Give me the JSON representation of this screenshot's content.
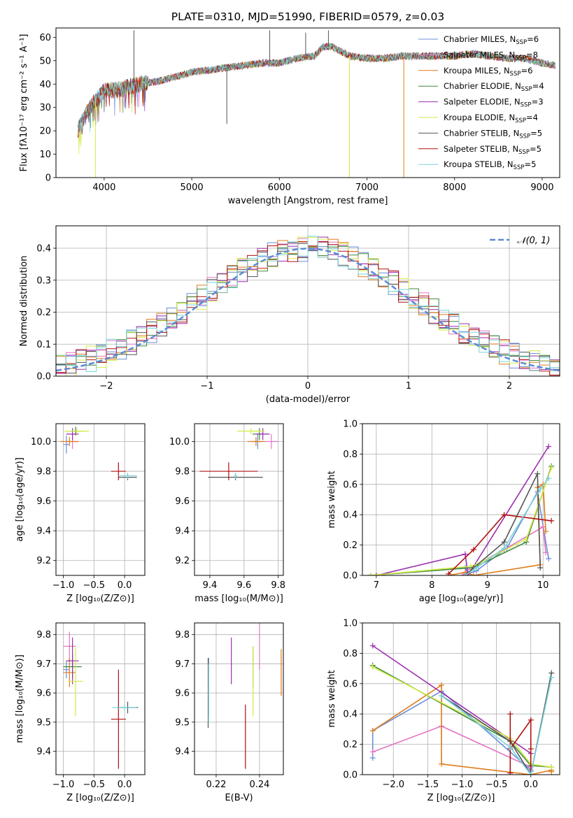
{
  "figure_title": "PLATE=0310, MJD=51990, FIBERID=0579, z=0.03",
  "colors": {
    "Chabrier MILES": "#6a8fd8",
    "Salpeter MILES": "#e377c2",
    "Kroupa MILES": "#e07b1a",
    "Chabrier ELODIE": "#3f8a3f",
    "Salpeter ELODIE": "#9a2fae",
    "Kroupa ELODIE": "#d4ea45",
    "Chabrier STELIB": "#555555",
    "Salpeter STELIB": "#b01010",
    "Kroupa STELIB": "#7ad3da"
  },
  "chart_data": [
    {
      "id": "spectrum",
      "type": "line",
      "title": "PLATE=0310, MJD=51990, FIBERID=0579, z=0.03",
      "xlabel": "wavelength [Angstrom, rest frame]",
      "ylabel": "Flux [fλ10⁻¹⁷ erg cm⁻² s⁻¹ A⁻¹]",
      "xlim": [
        3450,
        9200
      ],
      "ylim": [
        0,
        64
      ],
      "xticks": [
        4000,
        5000,
        6000,
        7000,
        8000,
        9000
      ],
      "yticks": [
        0,
        10,
        20,
        30,
        40,
        50,
        60
      ],
      "legend_position": "top-right",
      "legend": [
        {
          "name": "Chabrier MILES",
          "nssp": "6"
        },
        {
          "name": "Salpeter MILES",
          "nssp": "8"
        },
        {
          "name": "Kroupa MILES",
          "nssp": "6"
        },
        {
          "name": "Chabrier ELODIE",
          "nssp": "4"
        },
        {
          "name": "Salpeter ELODIE",
          "nssp": "3"
        },
        {
          "name": "Kroupa ELODIE",
          "nssp": "4"
        },
        {
          "name": "Chabrier STELIB",
          "nssp": "5"
        },
        {
          "name": "Salpeter STELIB",
          "nssp": "5"
        },
        {
          "name": "Kroupa STELIB",
          "nssp": "5"
        }
      ],
      "continuum": {
        "x": [
          3700,
          3800,
          3900,
          4000,
          4200,
          4400,
          4600,
          4800,
          5000,
          5200,
          5400,
          5600,
          5800,
          6000,
          6200,
          6400,
          6500,
          6600,
          6800,
          7000,
          7200,
          7400,
          7600,
          7800,
          8000,
          8200,
          8400,
          8600,
          8800,
          9000,
          9150
        ],
        "y": [
          20,
          28,
          33,
          37,
          38,
          40,
          41,
          43,
          45,
          46,
          47,
          48,
          49,
          49,
          51,
          52,
          56,
          56,
          52,
          51,
          51,
          52,
          52,
          52,
          52,
          53,
          52,
          51,
          51,
          49,
          48
        ]
      },
      "noise_amplitude": 1.6,
      "spikes": [
        {
          "x": 3900,
          "y": 0,
          "series": "Kroupa ELODIE"
        },
        {
          "x": 4340,
          "y": 63,
          "series": "Chabrier STELIB"
        },
        {
          "x": 5400,
          "y": 23,
          "series": "Chabrier STELIB"
        },
        {
          "x": 5890,
          "y": 63,
          "series": "Chabrier STELIB"
        },
        {
          "x": 6300,
          "y": 62,
          "series": "Chabrier STELIB"
        },
        {
          "x": 6560,
          "y": 63,
          "series": "Chabrier STELIB"
        },
        {
          "x": 6800,
          "y": 0,
          "series": "Kroupa ELODIE"
        },
        {
          "x": 7420,
          "y": 0,
          "series": "Kroupa MILES"
        }
      ]
    },
    {
      "id": "residuals",
      "type": "area",
      "xlabel": "(data-model)/error",
      "ylabel": "Normed distribution",
      "xlim": [
        -2.5,
        2.5
      ],
      "ylim": [
        0,
        0.47
      ],
      "xticks": [
        -2,
        -1,
        0,
        1,
        2
      ],
      "yticks": [
        0.0,
        0.1,
        0.2,
        0.3,
        0.4
      ],
      "bin_width": 0.1,
      "reference": {
        "name": "𝒩(0, 1)",
        "mean": 0,
        "sigma": 1
      },
      "legend_position": "top-right"
    },
    {
      "id": "age_vs_Z",
      "type": "scatter",
      "xlabel": "Z [log₁₀(Z/Z⊙)]",
      "ylabel": "age  [log₁₀(age/yr)]",
      "xlim": [
        -1.12,
        0.33
      ],
      "ylim": [
        9.1,
        10.12
      ],
      "xticks": [
        -1.0,
        -0.5,
        0.0
      ],
      "yticks": [
        9.2,
        9.4,
        9.6,
        9.8,
        10.0
      ],
      "points": [
        {
          "series": "Chabrier MILES",
          "x": -0.95,
          "y": 9.98,
          "xerr": 0.05,
          "yerr": 0.06
        },
        {
          "series": "Salpeter MILES",
          "x": -0.85,
          "y": 10.0,
          "xerr": 0.1,
          "yerr": 0.05
        },
        {
          "series": "Kroupa MILES",
          "x": -0.9,
          "y": 10.0,
          "xerr": 0.15,
          "yerr": 0.03
        },
        {
          "series": "Chabrier ELODIE",
          "x": -0.8,
          "y": 10.07,
          "xerr": 0.1,
          "yerr": 0.03
        },
        {
          "series": "Salpeter ELODIE",
          "x": -0.85,
          "y": 10.05,
          "xerr": 0.1,
          "yerr": 0.04
        },
        {
          "series": "Kroupa ELODIE",
          "x": -0.78,
          "y": 10.07,
          "xerr": 0.2,
          "yerr": 0.02
        },
        {
          "series": "Chabrier STELIB",
          "x": 0.05,
          "y": 9.76,
          "xerr": 0.15,
          "yerr": 0.02
        },
        {
          "series": "Salpeter STELIB",
          "x": -0.1,
          "y": 9.8,
          "xerr": 0.12,
          "yerr": 0.06
        },
        {
          "series": "Kroupa STELIB",
          "x": 0.05,
          "y": 9.77,
          "xerr": 0.15,
          "yerr": 0.02
        }
      ]
    },
    {
      "id": "age_vs_mass",
      "type": "scatter",
      "xlabel": "mass [log₁₀(M/M⊙)]",
      "ylabel": "",
      "xlim": [
        9.31,
        9.83
      ],
      "ylim": [
        9.1,
        10.12
      ],
      "xticks": [
        9.4,
        9.6,
        9.8
      ],
      "yticks": [
        9.2,
        9.4,
        9.6,
        9.8,
        10.0
      ],
      "points": [
        {
          "series": "Chabrier MILES",
          "x": 9.68,
          "y": 10.0,
          "xerr": 0.03,
          "yerr": 0.05
        },
        {
          "series": "Salpeter MILES",
          "x": 9.76,
          "y": 10.0,
          "xerr": 0.04,
          "yerr": 0.05
        },
        {
          "series": "Kroupa MILES",
          "x": 9.67,
          "y": 10.0,
          "xerr": 0.05,
          "yerr": 0.03
        },
        {
          "series": "Chabrier ELODIE",
          "x": 9.69,
          "y": 10.05,
          "xerr": 0.04,
          "yerr": 0.04
        },
        {
          "series": "Salpeter ELODIE",
          "x": 9.71,
          "y": 10.05,
          "xerr": 0.04,
          "yerr": 0.04
        },
        {
          "series": "Kroupa ELODIE",
          "x": 9.64,
          "y": 10.07,
          "xerr": 0.08,
          "yerr": 0.02
        },
        {
          "series": "Chabrier STELIB",
          "x": 9.55,
          "y": 9.76,
          "xerr": 0.16,
          "yerr": 0.02
        },
        {
          "series": "Salpeter STELIB",
          "x": 9.51,
          "y": 9.8,
          "xerr": 0.17,
          "yerr": 0.06
        },
        {
          "series": "Kroupa STELIB",
          "x": 9.55,
          "y": 9.77,
          "xerr": 0.01,
          "yerr": 0.02
        }
      ]
    },
    {
      "id": "massweight_vs_age",
      "type": "line",
      "xlabel": "age  [log₁₀(age/yr)]",
      "ylabel": "mass weight",
      "xlim": [
        6.75,
        10.3
      ],
      "ylim": [
        0,
        1.0
      ],
      "xticks": [
        7,
        8,
        9,
        10
      ],
      "yticks": [
        0.0,
        0.2,
        0.4,
        0.6,
        0.8,
        1.0
      ],
      "series": [
        {
          "name": "Chabrier MILES",
          "x": [
            6.9,
            8.6,
            8.65,
            8.8,
            9.35,
            9.9,
            10.1
          ],
          "y": [
            0.0,
            0.05,
            0.01,
            0.03,
            0.18,
            0.55,
            0.11
          ]
        },
        {
          "name": "Salpeter MILES",
          "x": [
            8.55,
            8.7,
            9.3,
            10.0,
            10.05
          ],
          "y": [
            0.0,
            0.05,
            0.17,
            0.32,
            0.15
          ]
        },
        {
          "name": "Kroupa MILES",
          "x": [
            8.3,
            8.6,
            8.75,
            9.95,
            9.9,
            10.0,
            10.05
          ],
          "y": [
            0.0,
            0.02,
            0.0,
            0.07,
            0.58,
            0.6,
            0.29
          ]
        },
        {
          "name": "Chabrier ELODIE",
          "x": [
            6.9,
            8.7,
            8.8,
            9.7,
            10.15
          ],
          "y": [
            0.0,
            0.05,
            0.06,
            0.22,
            0.72
          ]
        },
        {
          "name": "Salpeter ELODIE",
          "x": [
            7.0,
            8.6,
            8.65,
            10.1
          ],
          "y": [
            0.0,
            0.14,
            0.0,
            0.85
          ]
        },
        {
          "name": "Kroupa ELODIE",
          "x": [
            6.9,
            8.7,
            8.8,
            9.7,
            10.15
          ],
          "y": [
            0.0,
            0.06,
            0.07,
            0.24,
            0.71
          ]
        },
        {
          "name": "Chabrier STELIB",
          "x": [
            8.6,
            8.75,
            9.3,
            9.9,
            9.95
          ],
          "y": [
            0.0,
            0.05,
            0.22,
            0.67,
            0.05
          ]
        },
        {
          "name": "Salpeter STELIB",
          "x": [
            8.3,
            8.75,
            9.3,
            10.15
          ],
          "y": [
            0.01,
            0.17,
            0.4,
            0.36
          ]
        },
        {
          "name": "Kroupa STELIB",
          "x": [
            8.6,
            8.8,
            9.3,
            9.95,
            10.1
          ],
          "y": [
            0.0,
            0.05,
            0.18,
            0.57,
            0.64
          ]
        }
      ]
    },
    {
      "id": "mass_vs_Z",
      "type": "scatter",
      "xlabel": "Z [log₁₀(Z/Z⊙)]",
      "ylabel": "mass [log₁₀(M/M⊙)]",
      "xlim": [
        -1.12,
        0.33
      ],
      "ylim": [
        9.32,
        9.84
      ],
      "xticks": [
        -1.0,
        -0.5,
        0.0
      ],
      "yticks": [
        9.4,
        9.5,
        9.6,
        9.7,
        9.8
      ],
      "points": [
        {
          "series": "Chabrier MILES",
          "x": -0.95,
          "y": 9.68,
          "xerr": 0.05,
          "yerr": 0.03
        },
        {
          "series": "Salpeter MILES",
          "x": -0.9,
          "y": 9.76,
          "xerr": 0.1,
          "yerr": 0.05
        },
        {
          "series": "Kroupa MILES",
          "x": -0.9,
          "y": 9.67,
          "xerr": 0.1,
          "yerr": 0.05
        },
        {
          "series": "Chabrier ELODIE",
          "x": -0.85,
          "y": 9.69,
          "xerr": 0.15,
          "yerr": 0.04
        },
        {
          "series": "Salpeter ELODIE",
          "x": -0.85,
          "y": 9.71,
          "xerr": 0.1,
          "yerr": 0.08
        },
        {
          "series": "Kroupa ELODIE",
          "x": -0.8,
          "y": 9.64,
          "xerr": 0.12,
          "yerr": 0.12
        },
        {
          "series": "Chabrier STELIB",
          "x": 0.05,
          "y": 9.55,
          "xerr": 0.17,
          "yerr": 0.02
        },
        {
          "series": "Salpeter STELIB",
          "x": -0.1,
          "y": 9.51,
          "xerr": 0.12,
          "yerr": 0.17
        },
        {
          "series": "Kroupa STELIB",
          "x": 0.0,
          "y": 9.55,
          "xerr": 0.2,
          "yerr": 0.01
        }
      ]
    },
    {
      "id": "mass_vs_ebv",
      "type": "scatter",
      "xlabel": "E(B-V)",
      "ylabel": "",
      "xlim": [
        0.21,
        0.251
      ],
      "ylim": [
        9.32,
        9.84
      ],
      "xticks": [
        0.22,
        0.24
      ],
      "yticks": [
        9.4,
        9.5,
        9.6,
        9.7,
        9.8
      ],
      "points": [
        {
          "series": "Chabrier MILES",
          "x": 0.2165,
          "y": 9.62,
          "yerr": 0.1
        },
        {
          "series": "Salpeter MILES",
          "x": 0.24,
          "y": 9.76,
          "yerr": 0.08
        },
        {
          "series": "Kroupa MILES",
          "x": 0.25,
          "y": 9.67,
          "yerr": 0.08
        },
        {
          "series": "Chabrier ELODIE",
          "x": 0.237,
          "y": 9.69,
          "yerr": 0.07
        },
        {
          "series": "Salpeter ELODIE",
          "x": 0.227,
          "y": 9.71,
          "yerr": 0.08
        },
        {
          "series": "Kroupa ELODIE",
          "x": 0.237,
          "y": 9.64,
          "yerr": 0.12
        },
        {
          "series": "Chabrier STELIB",
          "x": 0.2163,
          "y": 9.6,
          "yerr": 0.12
        },
        {
          "series": "Salpeter STELIB",
          "x": 0.2335,
          "y": 9.45,
          "yerr": 0.11
        },
        {
          "series": "Kroupa STELIB",
          "x": 0.2165,
          "y": 9.6,
          "yerr": 0.1
        }
      ]
    },
    {
      "id": "massweight_vs_Z",
      "type": "line",
      "xlabel": "Z [log₁₀(Z/Z⊙)]",
      "ylabel": "mass weight",
      "xlim": [
        -2.45,
        0.42
      ],
      "ylim": [
        0,
        1.0
      ],
      "xticks": [
        -2.0,
        -1.5,
        -1.0,
        -0.5,
        0.0
      ],
      "yticks": [
        0.0,
        0.2,
        0.4,
        0.6,
        0.8,
        1.0
      ],
      "series": [
        {
          "name": "Chabrier MILES",
          "x": [
            -2.3,
            -2.3,
            -1.3,
            0.0,
            0.0
          ],
          "y": [
            0.11,
            0.29,
            0.55,
            0.03,
            0.02
          ]
        },
        {
          "name": "Salpeter MILES",
          "x": [
            -2.3,
            -1.3,
            0.0,
            0.0
          ],
          "y": [
            0.15,
            0.32,
            0.05,
            0.0
          ]
        },
        {
          "name": "Kroupa MILES",
          "x": [
            -2.3,
            -1.3,
            -1.3,
            0.0,
            0.3,
            0.3
          ],
          "y": [
            0.29,
            0.59,
            0.07,
            0.0,
            0.03,
            0.02
          ]
        },
        {
          "name": "Chabrier ELODIE",
          "x": [
            -2.3,
            -0.3,
            0.0,
            0.3
          ],
          "y": [
            0.72,
            0.22,
            0.06,
            0.05
          ]
        },
        {
          "name": "Salpeter ELODIE",
          "x": [
            -2.3,
            0.0,
            0.0
          ],
          "y": [
            0.85,
            0.14,
            0.0
          ]
        },
        {
          "name": "Kroupa ELODIE",
          "x": [
            -2.3,
            -0.3,
            0.0,
            0.3
          ],
          "y": [
            0.71,
            0.24,
            0.07,
            0.05
          ]
        },
        {
          "name": "Chabrier STELIB",
          "x": [
            -1.3,
            -0.3,
            0.0,
            0.3
          ],
          "y": [
            0.52,
            0.22,
            0.0,
            0.67
          ]
        },
        {
          "name": "Salpeter STELIB",
          "x": [
            -0.3,
            -0.3,
            -0.3,
            0.0,
            0.0,
            0.0
          ],
          "y": [
            0.4,
            0.01,
            0.17,
            0.36,
            0.0,
            0.17
          ]
        },
        {
          "name": "Kroupa STELIB",
          "x": [
            -1.3,
            -0.3,
            0.0,
            0.3
          ],
          "y": [
            0.52,
            0.18,
            0.0,
            0.64
          ]
        }
      ]
    }
  ]
}
